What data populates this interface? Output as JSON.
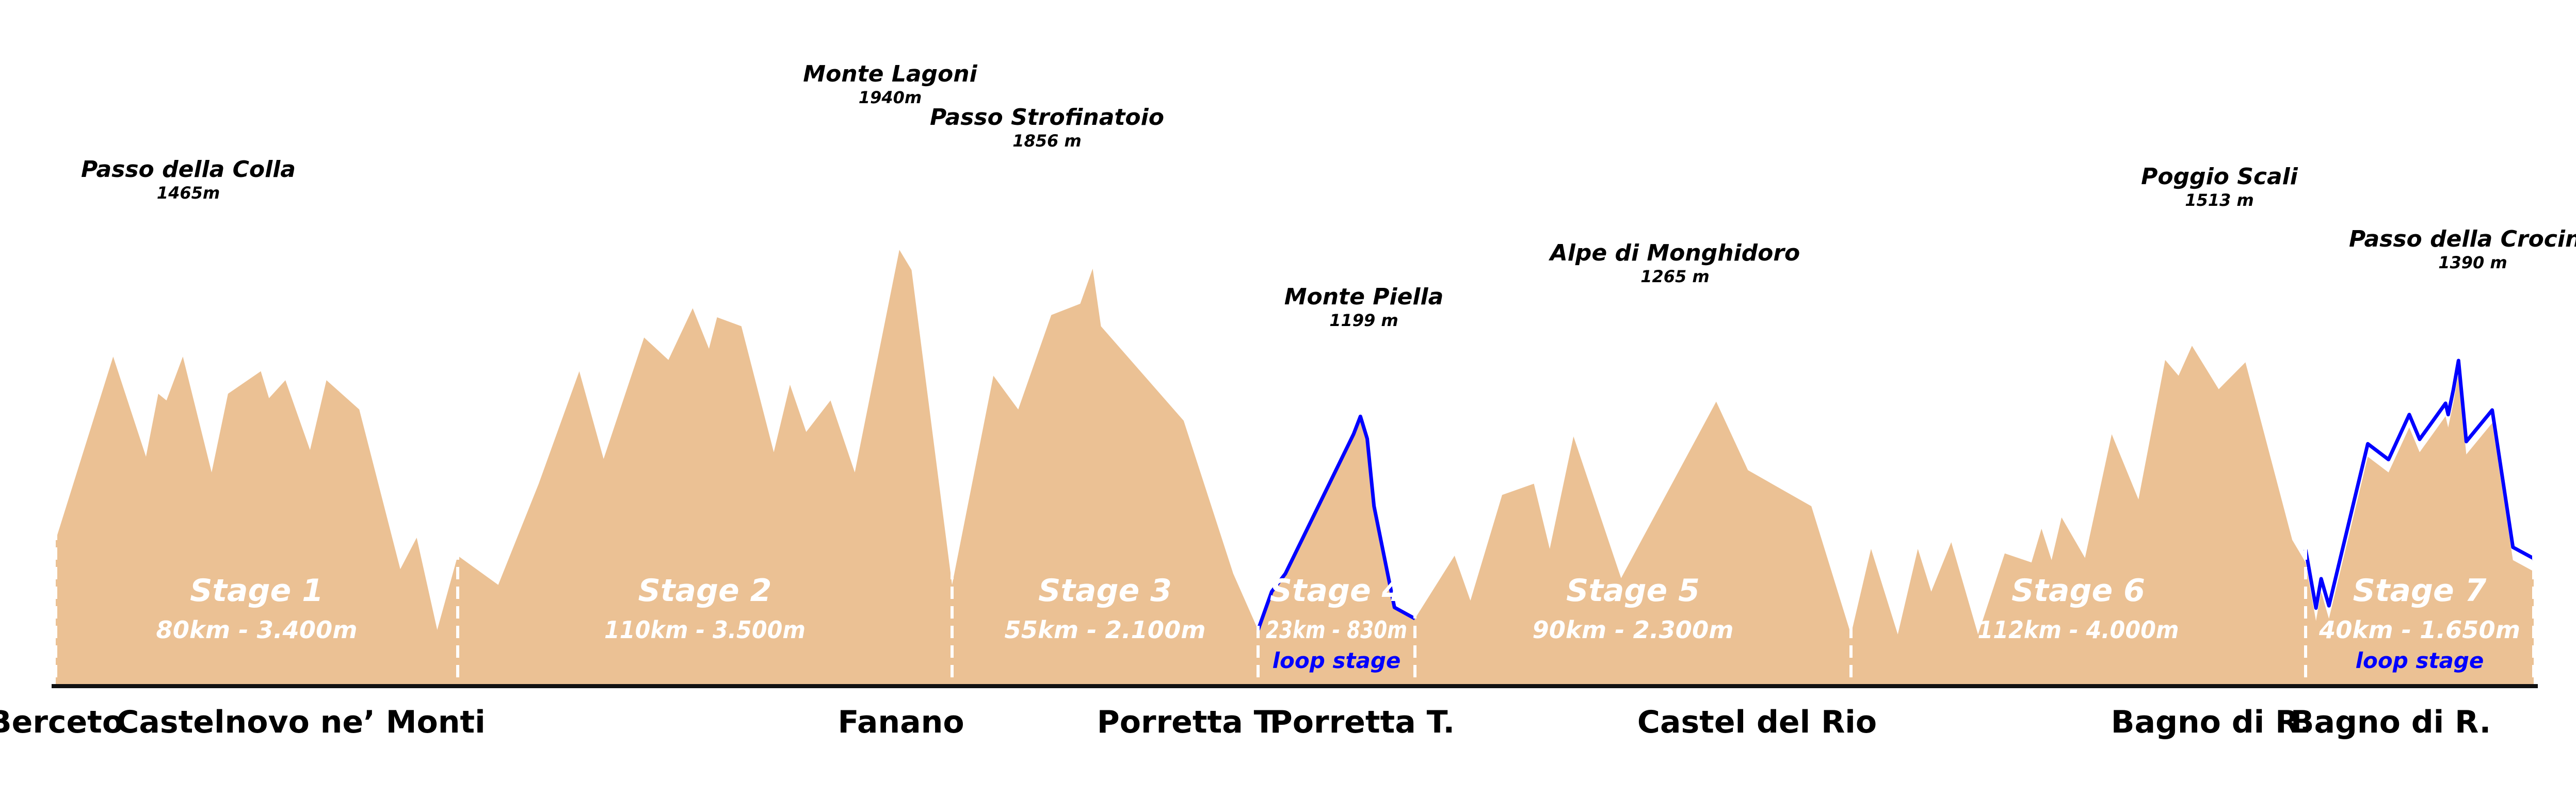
{
  "colors": {
    "profile_fill": "#ebc194",
    "loop_line": "#0000ff",
    "baseline": "#111111",
    "divider": "#ffffff",
    "stage_text": "#ffffff",
    "loop_text": "#0000ff",
    "label_text": "#000000"
  },
  "chart_data": {
    "type": "area",
    "title": "",
    "xlabel": "",
    "ylabel": "",
    "ylim": [
      0,
      2100
    ],
    "grid": false,
    "stages": [
      {
        "name": "Stage 1",
        "distance_km": 80,
        "elevation_gain_m": 3400,
        "stats": "80km - 3.400m",
        "loop": false,
        "loop_label": "",
        "start": "Berceto",
        "end": "Castelnovo ne' Monti",
        "profile": [
          [
            0,
            650
          ],
          [
            7,
            1465
          ],
          [
            11,
            1020
          ],
          [
            12.5,
            1300
          ],
          [
            13.5,
            1270
          ],
          [
            15.5,
            1465
          ],
          [
            19,
            950
          ],
          [
            21,
            1300
          ],
          [
            25,
            1400
          ],
          [
            26,
            1280
          ],
          [
            28,
            1360
          ],
          [
            31,
            1050
          ],
          [
            33,
            1360
          ],
          [
            37,
            1230
          ],
          [
            42,
            520
          ],
          [
            44,
            660
          ],
          [
            46.5,
            250
          ],
          [
            49,
            580
          ]
        ]
      },
      {
        "name": "Stage 2",
        "distance_km": 110,
        "elevation_gain_m": 3500,
        "stats": "110km - 3.500m",
        "loop": false,
        "loop_label": "",
        "start": "Castelnovo ne' Monti",
        "end": "Fanano",
        "profile": [
          [
            0,
            580
          ],
          [
            5,
            450
          ],
          [
            10,
            900
          ],
          [
            15,
            1400
          ],
          [
            18,
            1010
          ],
          [
            23,
            1550
          ],
          [
            26,
            1450
          ],
          [
            29,
            1680
          ],
          [
            31,
            1500
          ],
          [
            32,
            1640
          ],
          [
            35,
            1600
          ],
          [
            39,
            1040
          ],
          [
            41,
            1340
          ],
          [
            43,
            1130
          ],
          [
            46,
            1270
          ],
          [
            49,
            950
          ],
          [
            54.5,
            1940
          ],
          [
            56,
            1850
          ],
          [
            61,
            450
          ]
        ]
      },
      {
        "name": "Stage 3",
        "distance_km": 55,
        "elevation_gain_m": 2100,
        "stats": "55km - 2.100m",
        "loop": false,
        "loop_label": "",
        "start": "Fanano",
        "end": "Porretta T.",
        "profile": [
          [
            0,
            450
          ],
          [
            5,
            1380
          ],
          [
            8,
            1230
          ],
          [
            12,
            1650
          ],
          [
            15.5,
            1700
          ],
          [
            17,
            1856
          ],
          [
            18,
            1600
          ],
          [
            28,
            1180
          ],
          [
            34,
            500
          ],
          [
            37,
            250
          ]
        ]
      },
      {
        "name": "Stage 4",
        "distance_km": 23,
        "elevation_gain_m": 830,
        "stats": "23km - 830m",
        "loop": true,
        "loop_label": "loop stage",
        "start": "Porretta T.",
        "end": "Porretta T.",
        "profile": [
          [
            0,
            250
          ],
          [
            2,
            420
          ],
          [
            4,
            500
          ],
          [
            14,
            1120
          ],
          [
            15,
            1199
          ],
          [
            16,
            1100
          ],
          [
            17,
            800
          ],
          [
            20,
            350
          ],
          [
            23,
            300
          ]
        ]
      },
      {
        "name": "Stage 5",
        "distance_km": 90,
        "elevation_gain_m": 2300,
        "stats": "90km - 2.300m",
        "loop": false,
        "loop_label": "",
        "start": "Porretta T.",
        "end": "Castel del Rio",
        "profile": [
          [
            0,
            300
          ],
          [
            5,
            580
          ],
          [
            7,
            380
          ],
          [
            11,
            850
          ],
          [
            15,
            900
          ],
          [
            17,
            610
          ],
          [
            20,
            1110
          ],
          [
            26,
            480
          ],
          [
            38,
            1265
          ],
          [
            42,
            960
          ],
          [
            50,
            800
          ],
          [
            55,
            230
          ]
        ]
      },
      {
        "name": "Stage 6",
        "distance_km": 112,
        "elevation_gain_m": 4000,
        "stats": "112km - 4.000m",
        "loop": false,
        "loop_label": "",
        "start": "Castel del Rio",
        "end": "Bagno di R.",
        "profile": [
          [
            0,
            230
          ],
          [
            3,
            610
          ],
          [
            7,
            230
          ],
          [
            10,
            610
          ],
          [
            12,
            420
          ],
          [
            15,
            640
          ],
          [
            19,
            230
          ],
          [
            23,
            590
          ],
          [
            27,
            550
          ],
          [
            28.5,
            700
          ],
          [
            30,
            560
          ],
          [
            31.5,
            750
          ],
          [
            35,
            570
          ],
          [
            39,
            1120
          ],
          [
            43,
            830
          ],
          [
            47,
            1450
          ],
          [
            49,
            1380
          ],
          [
            51,
            1513
          ],
          [
            55,
            1320
          ],
          [
            59,
            1440
          ],
          [
            66,
            650
          ],
          [
            68,
            550
          ]
        ]
      },
      {
        "name": "Stage 7",
        "distance_km": 40,
        "elevation_gain_m": 1650,
        "stats": "40km - 1.650m",
        "loop": true,
        "loop_label": "loop stage",
        "start": "Bagno di R.",
        "end": "Bagno di R.",
        "profile": [
          [
            0,
            550
          ],
          [
            2,
            290
          ],
          [
            3,
            420
          ],
          [
            4.5,
            300
          ],
          [
            12,
            1020
          ],
          [
            16,
            950
          ],
          [
            20,
            1150
          ],
          [
            22,
            1040
          ],
          [
            27,
            1200
          ],
          [
            27.5,
            1150
          ],
          [
            28.5,
            1260
          ],
          [
            29.5,
            1390
          ],
          [
            31,
            1030
          ],
          [
            36,
            1170
          ],
          [
            40,
            560
          ],
          [
            44,
            510
          ]
        ]
      }
    ],
    "peaks": [
      {
        "name": "Passo della Colla",
        "elevation": "1465m",
        "stage": 1
      },
      {
        "name": "Monte Lagoni",
        "elevation": "1940m",
        "stage": 2
      },
      {
        "name": "Passo Strofinatoio",
        "elevation": "1856 m",
        "stage": 3
      },
      {
        "name": "Monte Piella",
        "elevation": "1199 m",
        "stage": 4
      },
      {
        "name": "Alpe di Monghidoro",
        "elevation": "1265 m",
        "stage": 5
      },
      {
        "name": "Poggio Scali",
        "elevation": "1513 m",
        "stage": 6
      },
      {
        "name": "Passo della Crocina",
        "elevation": "1390 m",
        "stage": 7
      }
    ],
    "towns": [
      "Berceto",
      "Castelnovo ne’ Monti",
      "Fanano",
      "Porretta T.",
      "Porretta T.",
      "Castel del Rio",
      "Bagno di R.",
      "Bagno di R."
    ]
  }
}
